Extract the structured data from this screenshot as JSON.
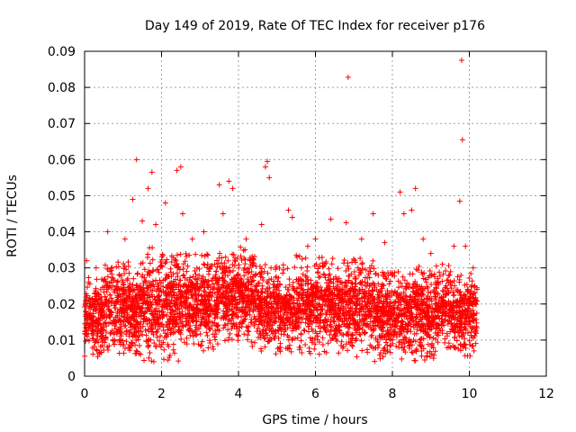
{
  "chart_data": {
    "type": "scatter",
    "title": "Day 149 of 2019, Rate Of TEC Index for receiver p176",
    "xlabel": "GPS time / hours",
    "ylabel": "ROTI / TECUs",
    "xlim": [
      0,
      12
    ],
    "ylim": [
      0,
      0.09
    ],
    "xticks": [
      0,
      2,
      4,
      6,
      8,
      10,
      12
    ],
    "xtick_labels": [
      "0",
      "2",
      "4",
      "6",
      "8",
      "10",
      "12"
    ],
    "yticks": [
      0,
      0.01,
      0.02,
      0.03,
      0.04,
      0.05,
      0.06,
      0.07,
      0.08,
      0.09
    ],
    "ytick_labels": [
      "0",
      "0.01",
      "0.02",
      "0.03",
      "0.04",
      "0.05",
      "0.06",
      "0.07",
      "0.08",
      "0.09"
    ],
    "grid": true,
    "marker": "+",
    "color": "#ff0000",
    "series": [
      {
        "name": "ROTI",
        "points": [
          [
            0.05,
            0.032
          ],
          [
            0.1,
            0.026
          ],
          [
            0.3,
            0.03
          ],
          [
            0.6,
            0.04
          ],
          [
            0.9,
            0.028
          ],
          [
            1.05,
            0.038
          ],
          [
            1.25,
            0.049
          ],
          [
            1.35,
            0.06
          ],
          [
            1.5,
            0.043
          ],
          [
            1.65,
            0.052
          ],
          [
            1.75,
            0.0565
          ],
          [
            1.85,
            0.042
          ],
          [
            2.1,
            0.048
          ],
          [
            2.4,
            0.057
          ],
          [
            2.5,
            0.058
          ],
          [
            2.55,
            0.045
          ],
          [
            2.8,
            0.038
          ],
          [
            3.1,
            0.04
          ],
          [
            3.5,
            0.053
          ],
          [
            3.6,
            0.045
          ],
          [
            3.75,
            0.054
          ],
          [
            3.85,
            0.052
          ],
          [
            4.2,
            0.038
          ],
          [
            4.6,
            0.042
          ],
          [
            4.7,
            0.058
          ],
          [
            4.75,
            0.0595
          ],
          [
            4.8,
            0.055
          ],
          [
            5.3,
            0.046
          ],
          [
            5.4,
            0.044
          ],
          [
            5.8,
            0.036
          ],
          [
            6.0,
            0.038
          ],
          [
            6.4,
            0.0435
          ],
          [
            6.8,
            0.0425
          ],
          [
            6.85,
            0.0828
          ],
          [
            7.2,
            0.038
          ],
          [
            7.5,
            0.045
          ],
          [
            7.8,
            0.037
          ],
          [
            8.2,
            0.051
          ],
          [
            8.3,
            0.045
          ],
          [
            8.5,
            0.046
          ],
          [
            8.6,
            0.052
          ],
          [
            8.8,
            0.038
          ],
          [
            9.0,
            0.034
          ],
          [
            9.3,
            0.031
          ],
          [
            9.6,
            0.036
          ],
          [
            9.75,
            0.0485
          ],
          [
            9.8,
            0.0875
          ],
          [
            9.82,
            0.0655
          ],
          [
            9.9,
            0.036
          ],
          [
            10.1,
            0.03
          ]
        ]
      }
    ],
    "dense_bands": [
      {
        "x_start": 0.0,
        "x_end": 0.5,
        "y_min": 0.005,
        "y_max": 0.028
      },
      {
        "x_start": 0.5,
        "x_end": 1.5,
        "y_min": 0.006,
        "y_max": 0.032
      },
      {
        "x_start": 1.5,
        "x_end": 2.5,
        "y_min": 0.004,
        "y_max": 0.036
      },
      {
        "x_start": 2.5,
        "x_end": 3.5,
        "y_min": 0.007,
        "y_max": 0.034
      },
      {
        "x_start": 3.5,
        "x_end": 4.5,
        "y_min": 0.008,
        "y_max": 0.036
      },
      {
        "x_start": 4.5,
        "x_end": 5.5,
        "y_min": 0.006,
        "y_max": 0.031
      },
      {
        "x_start": 5.5,
        "x_end": 6.5,
        "y_min": 0.006,
        "y_max": 0.034
      },
      {
        "x_start": 6.5,
        "x_end": 7.5,
        "y_min": 0.005,
        "y_max": 0.033
      },
      {
        "x_start": 7.5,
        "x_end": 8.5,
        "y_min": 0.004,
        "y_max": 0.03
      },
      {
        "x_start": 8.5,
        "x_end": 9.5,
        "y_min": 0.004,
        "y_max": 0.031
      },
      {
        "x_start": 9.5,
        "x_end": 10.2,
        "y_min": 0.005,
        "y_max": 0.03
      }
    ]
  }
}
